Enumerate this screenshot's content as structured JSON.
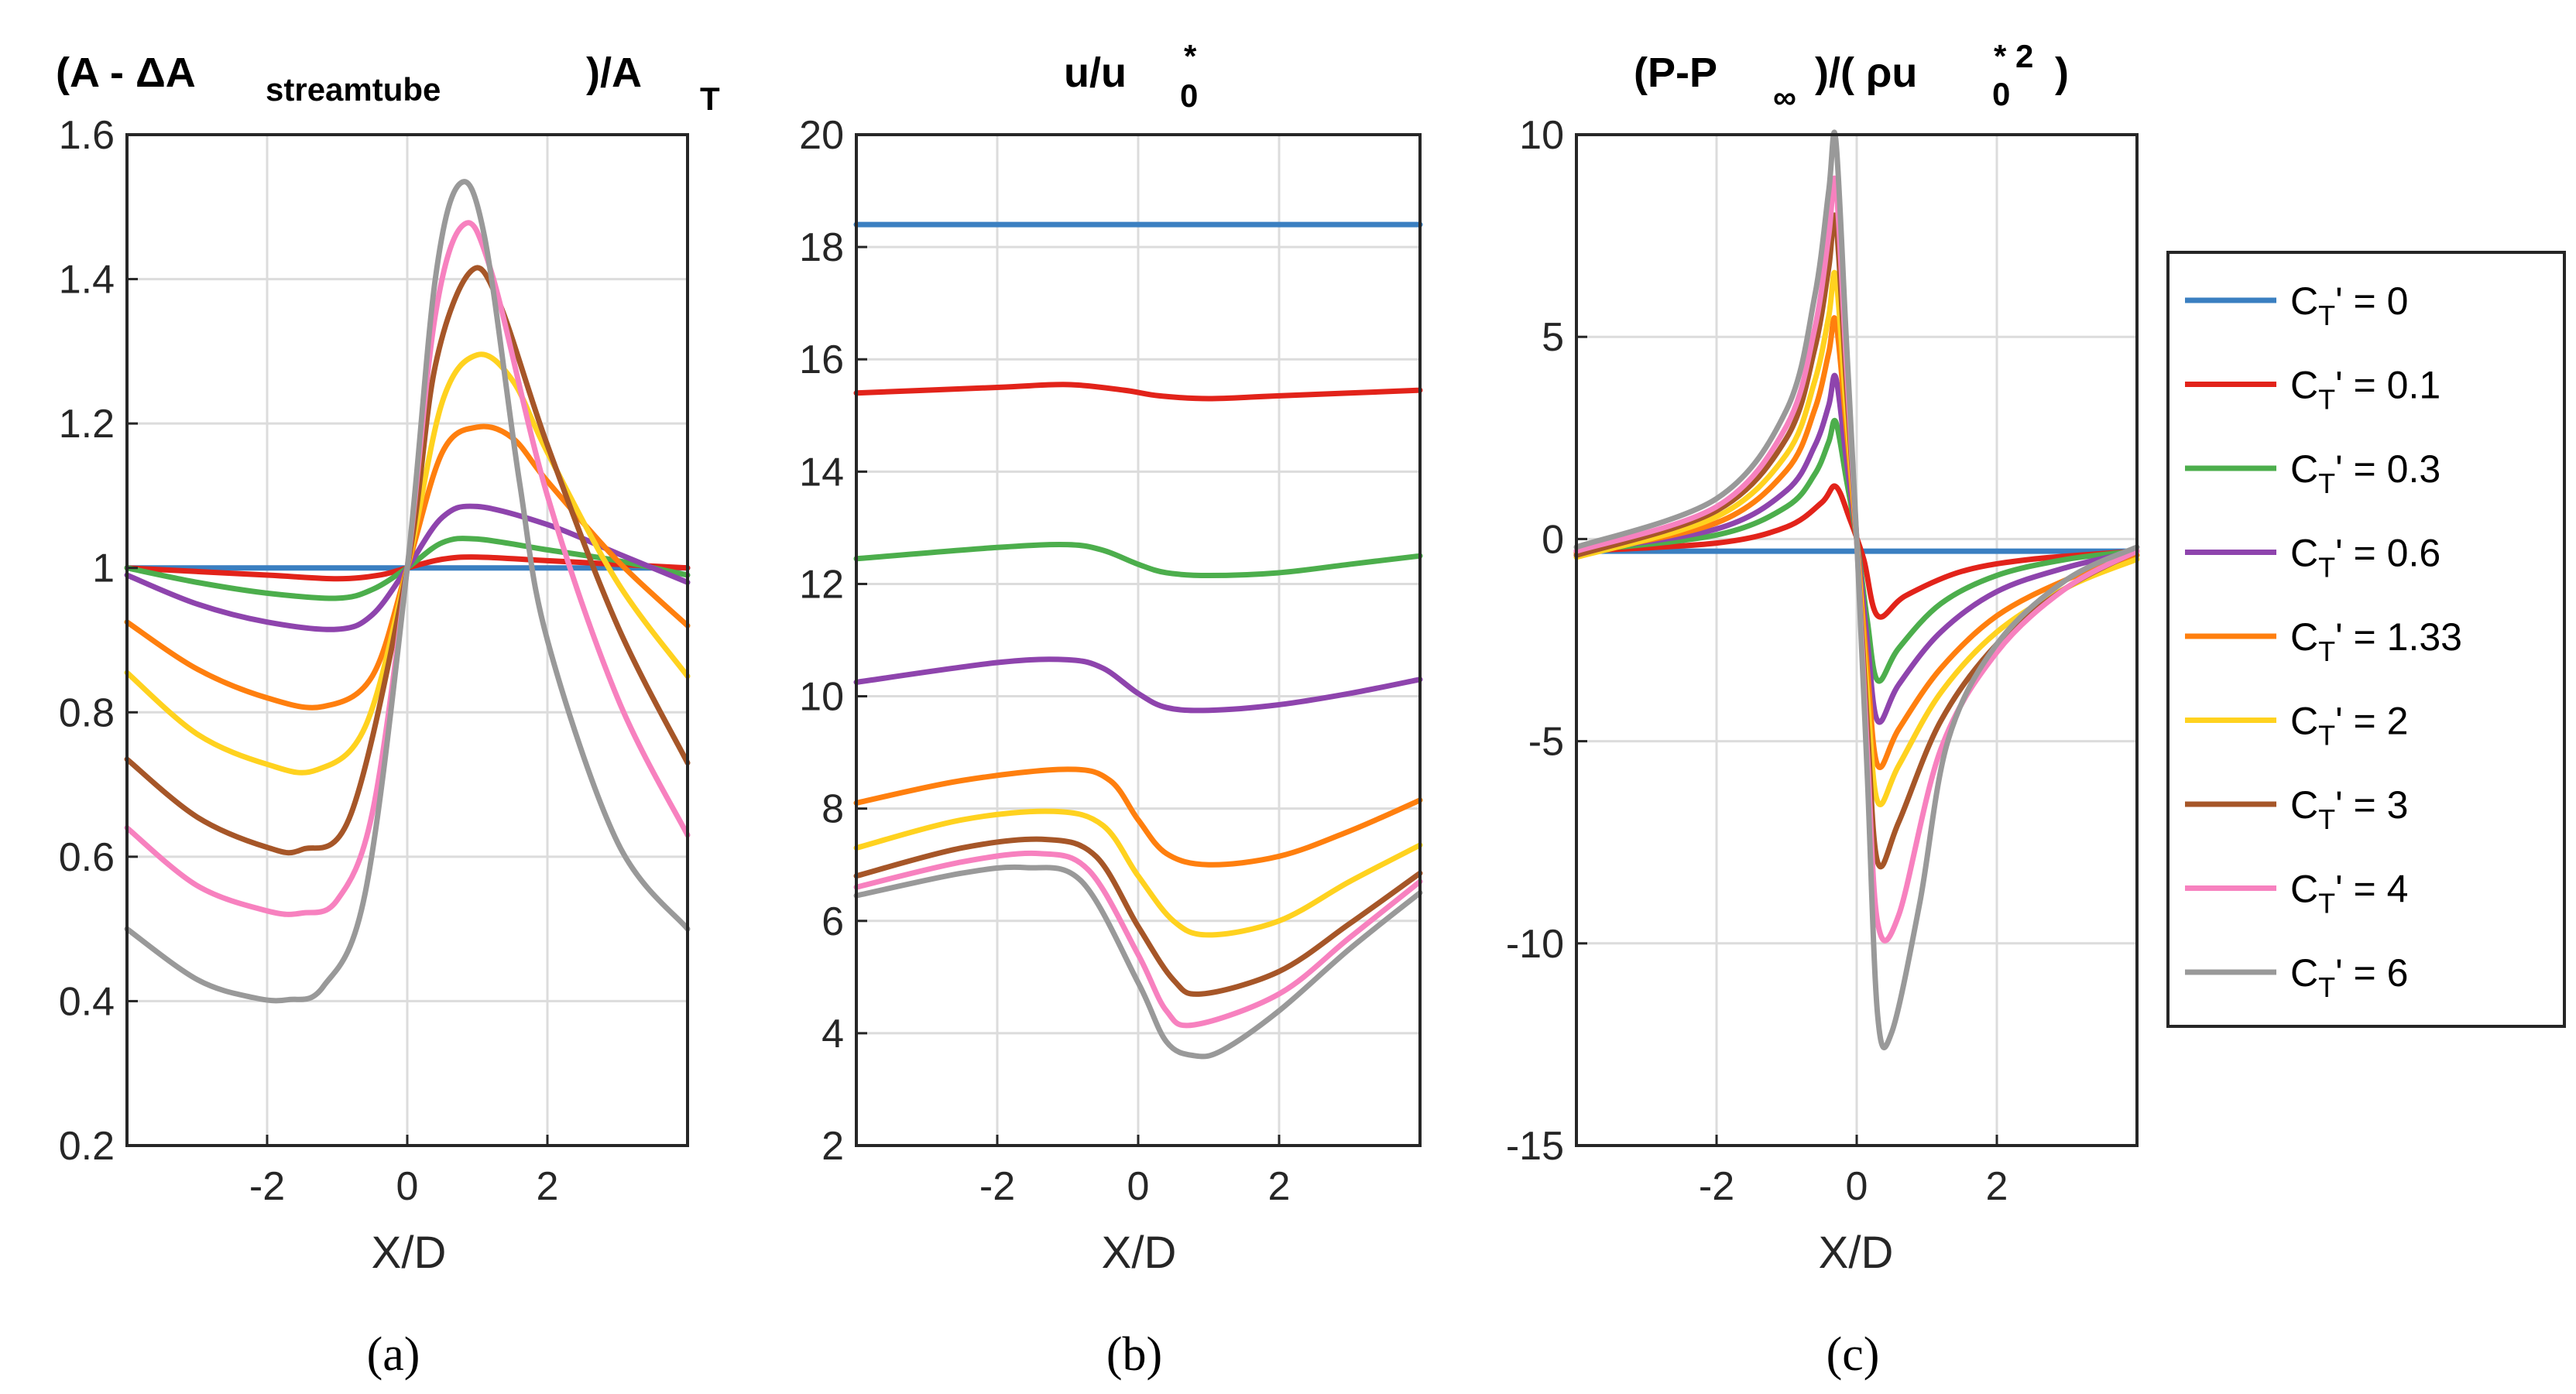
{
  "figure": {
    "panel_labels": [
      "(a)",
      "(b)",
      "(c)"
    ],
    "x_label": "X/D"
  },
  "chart_data": [
    {
      "type": "line",
      "panel": "(a)",
      "title": "(A - ΔA streamtube )/A T",
      "xlabel": "X/D",
      "ylabel": "",
      "xlim": [
        -4,
        4
      ],
      "ylim": [
        0.2,
        1.6
      ],
      "xticks": [
        -2,
        0,
        2
      ],
      "yticks": [
        0.2,
        0.4,
        0.6,
        0.8,
        1,
        1.2,
        1.4,
        1.6
      ],
      "grid": true,
      "series": [
        {
          "name": "CT' = 0",
          "x": [
            -4,
            0,
            4
          ],
          "y": [
            1.0,
            1.0,
            1.0
          ]
        },
        {
          "name": "CT' = 0.1",
          "x": [
            -4,
            -2,
            -1,
            -0.4,
            0,
            0.5,
            1,
            2,
            4
          ],
          "y": [
            1.0,
            0.99,
            0.985,
            0.99,
            1.0,
            1.012,
            1.015,
            1.01,
            1.0
          ]
        },
        {
          "name": "CT' = 0.3",
          "x": [
            -4,
            -3,
            -2,
            -1,
            -0.5,
            0,
            0.5,
            1,
            2,
            3,
            4
          ],
          "y": [
            1.0,
            0.98,
            0.965,
            0.958,
            0.97,
            1.0,
            1.035,
            1.04,
            1.025,
            1.01,
            0.99
          ]
        },
        {
          "name": "CT' = 0.6",
          "x": [
            -4,
            -3,
            -2,
            -1,
            -0.5,
            0,
            0.5,
            1,
            2,
            3,
            4
          ],
          "y": [
            0.99,
            0.95,
            0.925,
            0.915,
            0.935,
            1.0,
            1.07,
            1.085,
            1.06,
            1.02,
            0.98
          ]
        },
        {
          "name": "CT' = 1.33",
          "x": [
            -4,
            -3,
            -2,
            -1.2,
            -0.5,
            0,
            0.5,
            1,
            1.5,
            2,
            3,
            4
          ],
          "y": [
            0.925,
            0.86,
            0.82,
            0.808,
            0.85,
            1.0,
            1.16,
            1.195,
            1.18,
            1.12,
            1.01,
            0.92
          ]
        },
        {
          "name": "CT' = 2",
          "x": [
            -4,
            -3,
            -2,
            -1.3,
            -0.6,
            0,
            0.5,
            1,
            1.5,
            2,
            3,
            4
          ],
          "y": [
            0.855,
            0.77,
            0.728,
            0.72,
            0.78,
            1.0,
            1.23,
            1.295,
            1.26,
            1.16,
            0.98,
            0.85
          ]
        },
        {
          "name": "CT' = 3",
          "x": [
            -4,
            -3,
            -2,
            -1.5,
            -0.8,
            0,
            0.4,
            0.9,
            1.3,
            2,
            3,
            4
          ],
          "y": [
            0.735,
            0.655,
            0.613,
            0.61,
            0.66,
            1.0,
            1.28,
            1.41,
            1.37,
            1.17,
            0.92,
            0.73
          ]
        },
        {
          "name": "CT' = 4",
          "x": [
            -4,
            -3,
            -2,
            -1.5,
            -1,
            -0.5,
            0,
            0.4,
            0.8,
            1.2,
            2,
            3,
            4
          ],
          "y": [
            0.64,
            0.56,
            0.525,
            0.522,
            0.54,
            0.66,
            1.0,
            1.35,
            1.475,
            1.41,
            1.1,
            0.82,
            0.63
          ]
        },
        {
          "name": "CT' = 6",
          "x": [
            -4,
            -3,
            -2.2,
            -1.7,
            -1.2,
            -0.6,
            0,
            0.4,
            0.75,
            1.1,
            1.6,
            2,
            3,
            4
          ],
          "y": [
            0.5,
            0.43,
            0.405,
            0.402,
            0.42,
            0.55,
            1.0,
            1.4,
            1.532,
            1.46,
            1.12,
            0.9,
            0.62,
            0.5
          ]
        }
      ]
    },
    {
      "type": "line",
      "panel": "(b)",
      "title": "u/u 0 *",
      "xlabel": "X/D",
      "ylabel": "",
      "xlim": [
        -4,
        4
      ],
      "ylim": [
        2,
        20
      ],
      "xticks": [
        -2,
        0,
        2
      ],
      "yticks": [
        2,
        4,
        6,
        8,
        10,
        12,
        14,
        16,
        18,
        20
      ],
      "grid": true,
      "series": [
        {
          "name": "CT' = 0",
          "x": [
            -4,
            4
          ],
          "y": [
            18.4,
            18.4
          ]
        },
        {
          "name": "CT' = 0.1",
          "x": [
            -4,
            -2,
            -1,
            -0.2,
            0.3,
            1,
            2,
            4
          ],
          "y": [
            15.4,
            15.5,
            15.55,
            15.45,
            15.35,
            15.3,
            15.35,
            15.45
          ]
        },
        {
          "name": "CT' = 0.3",
          "x": [
            -4,
            -2,
            -1,
            -0.5,
            0,
            0.4,
            1,
            2,
            3,
            4
          ],
          "y": [
            12.45,
            12.65,
            12.7,
            12.6,
            12.35,
            12.2,
            12.15,
            12.2,
            12.35,
            12.5
          ]
        },
        {
          "name": "CT' = 0.6",
          "x": [
            -4,
            -2,
            -1,
            -0.5,
            0,
            0.4,
            1,
            2,
            3,
            4
          ],
          "y": [
            10.25,
            10.6,
            10.65,
            10.5,
            10.05,
            9.8,
            9.75,
            9.85,
            10.05,
            10.3
          ]
        },
        {
          "name": "CT' = 1.33",
          "x": [
            -4,
            -2.5,
            -1,
            -0.4,
            0,
            0.4,
            1,
            2,
            3,
            4
          ],
          "y": [
            8.1,
            8.5,
            8.7,
            8.5,
            7.8,
            7.2,
            7.0,
            7.15,
            7.6,
            8.15
          ]
        },
        {
          "name": "CT' = 2",
          "x": [
            -4,
            -2.5,
            -1.2,
            -0.5,
            0,
            0.5,
            1,
            2,
            3,
            4
          ],
          "y": [
            7.3,
            7.8,
            7.95,
            7.7,
            6.8,
            6.0,
            5.75,
            6.0,
            6.7,
            7.35
          ]
        },
        {
          "name": "CT' = 3",
          "x": [
            -4,
            -2.5,
            -1.3,
            -0.6,
            0,
            0.5,
            0.9,
            2,
            3,
            4
          ],
          "y": [
            6.8,
            7.3,
            7.45,
            7.15,
            5.9,
            4.95,
            4.7,
            5.1,
            5.95,
            6.85
          ]
        },
        {
          "name": "CT' = 4",
          "x": [
            -4,
            -2.5,
            -1.4,
            -0.7,
            0,
            0.4,
            0.8,
            2,
            3,
            4
          ],
          "y": [
            6.6,
            7.05,
            7.2,
            6.9,
            5.4,
            4.4,
            4.15,
            4.7,
            5.7,
            6.7
          ]
        },
        {
          "name": "CT' = 6",
          "x": [
            -4,
            -2.5,
            -1.6,
            -0.8,
            0,
            0.4,
            0.8,
            1.2,
            2,
            3,
            4
          ],
          "y": [
            6.45,
            6.85,
            6.95,
            6.7,
            4.9,
            3.85,
            3.6,
            3.7,
            4.4,
            5.5,
            6.5
          ]
        }
      ]
    },
    {
      "type": "line",
      "panel": "(c)",
      "title": "(P-P ∞ )/( ρu 0 * 2 )",
      "xlabel": "X/D",
      "ylabel": "",
      "xlim": [
        -4,
        4
      ],
      "ylim": [
        -15,
        10
      ],
      "xticks": [
        -2,
        0,
        2
      ],
      "yticks": [
        -15,
        -10,
        -5,
        0,
        5,
        10
      ],
      "grid": true,
      "legend_location": "outside-right",
      "series": [
        {
          "name": "CT' = 0",
          "x": [
            -4,
            4
          ],
          "y": [
            -0.3,
            -0.3
          ]
        },
        {
          "name": "CT' = 0.1",
          "x": [
            -4,
            -2,
            -1,
            -0.5,
            -0.3,
            -0.1,
            0.1,
            0.3,
            0.7,
            1.5,
            2.5,
            4
          ],
          "y": [
            -0.3,
            -0.1,
            0.3,
            0.9,
            1.3,
            0.5,
            -0.5,
            -1.9,
            -1.4,
            -0.8,
            -0.5,
            -0.3
          ]
        },
        {
          "name": "CT' = 0.3",
          "x": [
            -4,
            -2,
            -1,
            -0.6,
            -0.4,
            -0.3,
            -0.15,
            0,
            0.15,
            0.3,
            0.6,
            1.2,
            2,
            3,
            4
          ],
          "y": [
            -0.3,
            0.1,
            0.8,
            1.6,
            2.4,
            2.9,
            1.5,
            0,
            -2.0,
            -3.5,
            -2.7,
            -1.6,
            -0.9,
            -0.5,
            -0.3
          ]
        },
        {
          "name": "CT' = 0.6",
          "x": [
            -4,
            -2,
            -1,
            -0.6,
            -0.4,
            -0.3,
            -0.15,
            0,
            0.15,
            0.3,
            0.6,
            1.2,
            2,
            3,
            4
          ],
          "y": [
            -0.3,
            0.25,
            1.2,
            2.3,
            3.3,
            4.0,
            2.0,
            0,
            -2.5,
            -4.5,
            -3.6,
            -2.3,
            -1.3,
            -0.7,
            -0.3
          ]
        },
        {
          "name": "CT' = 1.33",
          "x": [
            -4,
            -2,
            -1,
            -0.6,
            -0.4,
            -0.3,
            -0.15,
            0,
            0.15,
            0.3,
            0.6,
            1.2,
            2,
            3,
            4
          ],
          "y": [
            -0.35,
            0.4,
            1.7,
            3.2,
            4.6,
            5.4,
            2.8,
            0,
            -3.2,
            -5.6,
            -4.7,
            -3.2,
            -1.9,
            -1.0,
            -0.4
          ]
        },
        {
          "name": "CT' = 2",
          "x": [
            -4,
            -2,
            -1,
            -0.6,
            -0.4,
            -0.3,
            -0.15,
            0,
            0.15,
            0.3,
            0.6,
            1.2,
            2,
            3,
            4
          ],
          "y": [
            -0.45,
            0.55,
            2.1,
            3.9,
            5.5,
            6.5,
            3.2,
            0,
            -3.8,
            -6.5,
            -5.6,
            -3.8,
            -2.3,
            -1.2,
            -0.5
          ]
        },
        {
          "name": "CT' = 3",
          "x": [
            -4,
            -2,
            -1,
            -0.6,
            -0.4,
            -0.3,
            -0.15,
            0,
            0.15,
            0.3,
            0.6,
            1.2,
            2,
            3,
            4
          ],
          "y": [
            -0.4,
            0.7,
            2.5,
            4.7,
            6.7,
            7.9,
            3.9,
            0,
            -4.6,
            -8.0,
            -7.0,
            -4.5,
            -2.6,
            -1.2,
            -0.3
          ]
        },
        {
          "name": "CT' = 4",
          "x": [
            -4,
            -2,
            -1,
            -0.6,
            -0.4,
            -0.3,
            -0.15,
            0,
            0.15,
            0.3,
            0.6,
            1.2,
            2,
            3,
            4
          ],
          "y": [
            -0.3,
            0.8,
            2.8,
            5.2,
            7.5,
            8.8,
            4.4,
            0,
            -5.2,
            -9.5,
            -9.3,
            -5.2,
            -2.8,
            -1.2,
            -0.3
          ]
        },
        {
          "name": "CT' = 6",
          "x": [
            -4,
            -2,
            -1,
            -0.6,
            -0.4,
            -0.3,
            -0.15,
            0,
            0.15,
            0.3,
            0.5,
            0.9,
            1.3,
            2,
            3,
            4
          ],
          "y": [
            -0.2,
            1.0,
            3.2,
            6.0,
            8.6,
            9.9,
            5.0,
            0,
            -5.8,
            -11.8,
            -12.2,
            -9.0,
            -5.0,
            -2.6,
            -1.0,
            -0.2
          ]
        }
      ]
    }
  ],
  "legend": {
    "colors": [
      "#3a7fc1",
      "#e2231a",
      "#4cae4c",
      "#8e44ad",
      "#ff7f0e",
      "#ffd21f",
      "#a65628",
      "#f781bf",
      "#999999"
    ],
    "entries": [
      {
        "prefix": "C",
        "sub": "T",
        "suffix": "' = 0"
      },
      {
        "prefix": "C",
        "sub": "T",
        "suffix": "' = 0.1"
      },
      {
        "prefix": "C",
        "sub": "T",
        "suffix": "' = 0.3"
      },
      {
        "prefix": "C",
        "sub": "T",
        "suffix": "' = 0.6"
      },
      {
        "prefix": "C",
        "sub": "T",
        "suffix": "' = 1.33"
      },
      {
        "prefix": "C",
        "sub": "T",
        "suffix": "' = 2"
      },
      {
        "prefix": "C",
        "sub": "T",
        "suffix": "' = 3"
      },
      {
        "prefix": "C",
        "sub": "T",
        "suffix": "' = 4"
      },
      {
        "prefix": "C",
        "sub": "T",
        "suffix": "' = 6"
      }
    ]
  },
  "titles": {
    "a": {
      "part1": "(A -  ΔA",
      "sub1": "streamtube",
      "part2": ")/A",
      "sub2": "T"
    },
    "b": {
      "part1": "u/u",
      "sup": "*",
      "sub": "0"
    },
    "c": {
      "part1": "(P-P",
      "sub1": "∞",
      "part2": ")/( ρu",
      "sup": "* 2",
      "sub2": "0",
      "part3": ")"
    }
  }
}
